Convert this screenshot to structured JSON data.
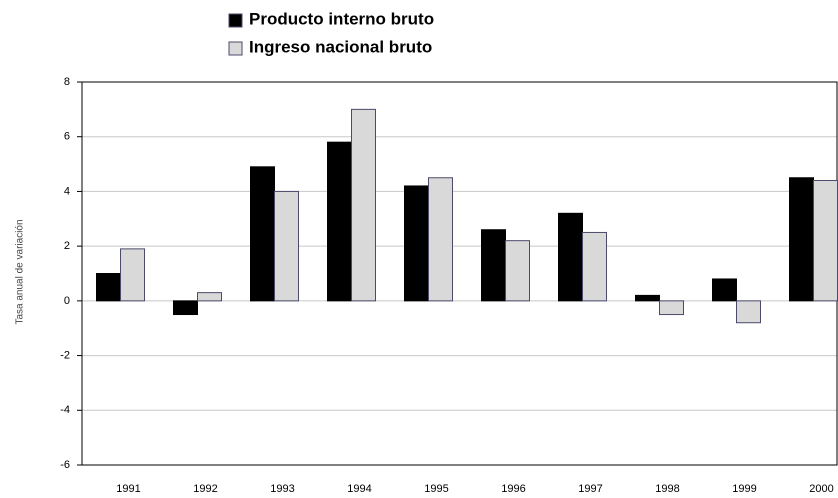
{
  "chart_data": {
    "type": "bar",
    "y_label": "Tasa anual de variación",
    "categories": [
      "1991",
      "1992",
      "1993",
      "1994",
      "1995",
      "1996",
      "1997",
      "1998",
      "1999",
      "2000"
    ],
    "series": [
      {
        "name": "Producto interno bruto",
        "color": "#000000",
        "values": [
          1.0,
          -0.5,
          4.9,
          5.8,
          4.2,
          2.6,
          3.2,
          0.2,
          0.8,
          4.5
        ]
      },
      {
        "name": "Ingreso nacional bruto",
        "color": "#d9d9d9",
        "values": [
          1.9,
          0.3,
          4.0,
          7.0,
          4.5,
          2.2,
          2.5,
          -0.5,
          -0.8,
          4.4
        ]
      }
    ],
    "ylim": [
      -6,
      8
    ],
    "yticks": [
      -6,
      -4,
      -2,
      0,
      2,
      4,
      6,
      8
    ],
    "grid": true
  }
}
